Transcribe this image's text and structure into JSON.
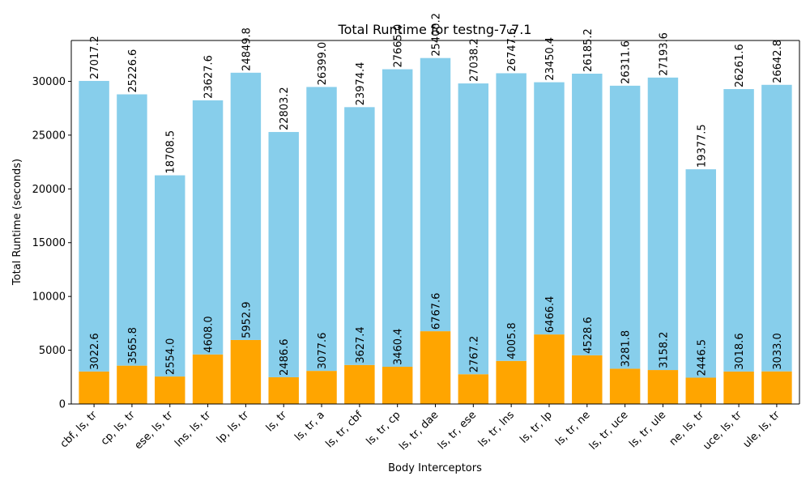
{
  "chart_data": {
    "type": "bar",
    "title": "Total Runtime for testng-7.7.1",
    "xlabel": "Body Interceptors",
    "ylabel": "Total Runtime (seconds)",
    "ylim": [
      0,
      33800
    ],
    "yticks": [
      0,
      5000,
      10000,
      15000,
      20000,
      25000,
      30000
    ],
    "grid": false,
    "stacked": true,
    "categories": [
      "cbf, ls, tr",
      "cp, ls, tr",
      "ese, ls, tr",
      "lns, ls, tr",
      "lp, ls, tr",
      "ls, tr",
      "ls, tr, a",
      "ls, tr, cbf",
      "ls, tr, cp",
      "ls, tr, dae",
      "ls, tr, ese",
      "ls, tr, lns",
      "ls, tr, lp",
      "ls, tr, ne",
      "ls, tr, uce",
      "ls, tr, ule",
      "ne, ls, tr",
      "uce, ls, tr",
      "ule, ls, tr"
    ],
    "series": [
      {
        "color": "#ffa500",
        "values": [
          3022.6,
          3565.8,
          2554.0,
          4608.0,
          5952.9,
          2486.6,
          3077.6,
          3627.4,
          3460.4,
          6767.6,
          2767.2,
          4005.8,
          6466.4,
          4528.6,
          3281.8,
          3158.2,
          2446.5,
          3018.6,
          3033.0
        ],
        "labels": [
          "3022.6",
          "3565.8",
          "2554.0",
          "4608.0",
          "5952.9",
          "2486.6",
          "3077.6",
          "3627.4",
          "3460.4",
          "6767.6",
          "2767.2",
          "4005.8",
          "6466.4",
          "4528.6",
          "3281.8",
          "3158.2",
          "2446.5",
          "3018.6",
          "3033.0"
        ]
      },
      {
        "color": "#87ceeb",
        "values": [
          27017.2,
          25226.6,
          18708.5,
          23627.6,
          24849.8,
          22803.2,
          26399.0,
          23974.4,
          27665.0,
          25400.2,
          27038.2,
          26747.6,
          23450.4,
          26185.2,
          26311.6,
          27193.6,
          19377.5,
          26261.6,
          26642.8
        ],
        "labels": [
          "27017.2",
          "25226.6",
          "18708.5",
          "23627.6",
          "24849.8",
          "22803.2",
          "26399.0",
          "23974.4",
          "27665.0",
          "25400.2",
          "27038.2",
          "26747.6",
          "23450.4",
          "26185.2",
          "26311.6",
          "27193.6",
          "19377.5",
          "26261.6",
          "26642.8"
        ]
      }
    ]
  }
}
